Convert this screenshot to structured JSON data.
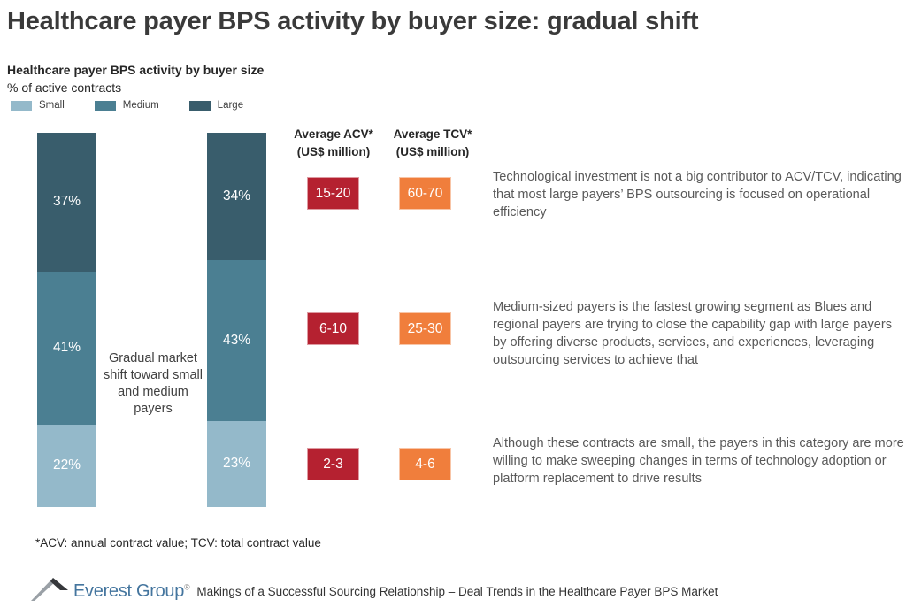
{
  "title": "Healthcare payer BPS activity by buyer size: gradual shift",
  "chart": {
    "subtitle": "Healthcare payer BPS activity by buyer size",
    "unit_label": "% of active contracts",
    "legend": [
      {
        "label": "Small",
        "color": "#94b9ca"
      },
      {
        "label": "Medium",
        "color": "#4b7f92"
      },
      {
        "label": "Large",
        "color": "#395d6c"
      }
    ],
    "center_note": "Gradual market shift toward small and medium payers"
  },
  "chart_data": {
    "type": "bar",
    "stacked": true,
    "percent_stacked": true,
    "title": "Healthcare payer BPS activity by buyer size",
    "ylabel": "% of active contracts",
    "ylim": [
      0,
      100
    ],
    "categories": [
      "",
      ""
    ],
    "series": [
      {
        "name": "Large",
        "color": "#395d6c",
        "values": [
          37,
          34
        ]
      },
      {
        "name": "Medium",
        "color": "#4b7f92",
        "values": [
          41,
          43
        ]
      },
      {
        "name": "Small",
        "color": "#94b9ca",
        "values": [
          22,
          23
        ]
      }
    ],
    "annotation": "Gradual market shift toward small and medium payers",
    "legend_position": "top-left",
    "grid": false
  },
  "columns": {
    "acv_line1": "Average ACV*",
    "acv_line2": "(US$ million)",
    "tcv_line1": "Average TCV*",
    "tcv_line2": "(US$ million)"
  },
  "rows": [
    {
      "segment": "Large",
      "acv": "15-20",
      "tcv": "60-70",
      "note": "Technological investment is not a big contributor to ACV/TCV, indicating that most large payers’ BPS outsourcing is focused on operational efficiency"
    },
    {
      "segment": "Medium",
      "acv": "6-10",
      "tcv": "25-30",
      "note": "Medium-sized payers is the fastest growing segment as Blues and regional payers are trying to close the capability gap with large payers by offering diverse products, services, and experiences, leveraging outsourcing services to achieve that"
    },
    {
      "segment": "Small",
      "acv": "2-3",
      "tcv": "4-6",
      "note": "Although these contracts are small, the payers in this category are more willing to make sweeping changes in terms of technology adoption or platform replacement to drive results"
    }
  ],
  "footnote": "*ACV: annual contract value; TCV: total contract value",
  "footer": {
    "logo_text": "Everest Group",
    "registered": "®",
    "caption": "Makings of a Successful Sourcing Relationship – Deal Trends in the Healthcare Payer BPS Market"
  },
  "colors": {
    "acv_box": "#b52130",
    "tcv_box": "#f07e3c",
    "logo_blue": "#44759e",
    "title_text": "#3a3a3a",
    "note_text": "#595959"
  }
}
